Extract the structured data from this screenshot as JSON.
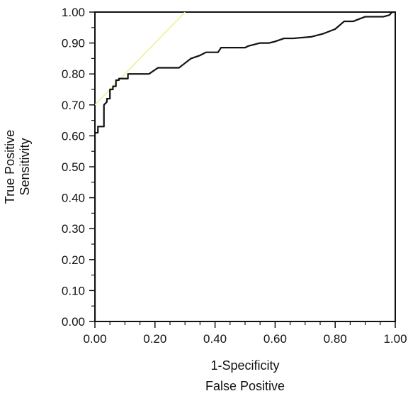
{
  "chart_data": {
    "type": "line",
    "xlabel": [
      "1-Specificity",
      "False Positive"
    ],
    "ylabel": [
      "True Positive",
      "Sensitivity"
    ],
    "xlim": [
      0,
      1
    ],
    "ylim": [
      0,
      1
    ],
    "xticks": [
      "0.00",
      "0.20",
      "0.40",
      "0.60",
      "0.80",
      "1.00"
    ],
    "yticks": [
      "0.00",
      "0.10",
      "0.20",
      "0.30",
      "0.40",
      "0.50",
      "0.60",
      "0.70",
      "0.80",
      "0.90",
      "1.00"
    ],
    "grid": false,
    "legend": "none",
    "series": [
      {
        "color": "#111111",
        "x": [
          0.0,
          0.0,
          0.01,
          0.01,
          0.03,
          0.03,
          0.04,
          0.04,
          0.05,
          0.05,
          0.06,
          0.06,
          0.07,
          0.07,
          0.08,
          0.08,
          0.11,
          0.11,
          0.18,
          0.21,
          0.28,
          0.3,
          0.32,
          0.35,
          0.37,
          0.41,
          0.42,
          0.5,
          0.51,
          0.55,
          0.58,
          0.6,
          0.63,
          0.66,
          0.72,
          0.74,
          0.76,
          0.8,
          0.83,
          0.86,
          0.9,
          0.91,
          0.96,
          0.98,
          0.99,
          1.0
        ],
        "y": [
          0.0,
          0.61,
          0.61,
          0.63,
          0.63,
          0.7,
          0.71,
          0.72,
          0.72,
          0.75,
          0.75,
          0.76,
          0.76,
          0.78,
          0.78,
          0.785,
          0.785,
          0.8,
          0.8,
          0.82,
          0.82,
          0.835,
          0.85,
          0.86,
          0.87,
          0.87,
          0.885,
          0.885,
          0.89,
          0.9,
          0.9,
          0.905,
          0.915,
          0.915,
          0.92,
          0.925,
          0.93,
          0.945,
          0.97,
          0.97,
          0.985,
          0.985,
          0.985,
          0.99,
          1.0,
          1.0
        ]
      },
      {
        "color": "#f0ef9a",
        "x": [
          0.0,
          0.3
        ],
        "y": [
          0.7,
          1.0
        ]
      }
    ]
  }
}
